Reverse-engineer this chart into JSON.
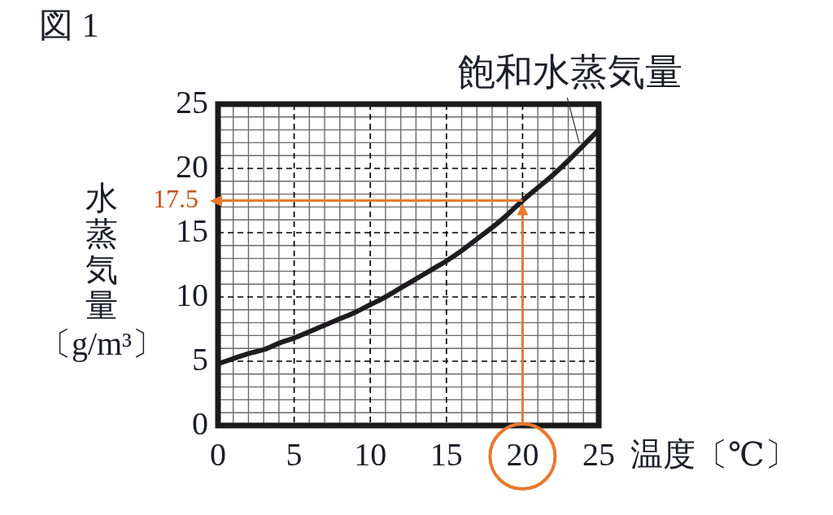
{
  "chart_data": {
    "type": "line",
    "title": "図 1",
    "xlabel": "温度〔℃〕",
    "ylabel": "水蒸気量〔g/m³〕",
    "x": [
      0,
      1,
      2,
      3,
      4,
      5,
      6,
      7,
      8,
      9,
      10,
      11,
      12,
      13,
      14,
      15,
      16,
      17,
      18,
      19,
      20,
      21,
      22,
      23,
      24,
      25
    ],
    "series": [
      {
        "name": "飽和水蒸気量",
        "color": "#1e1c1f",
        "values": [
          4.8,
          5.2,
          5.6,
          5.9,
          6.4,
          6.8,
          7.3,
          7.8,
          8.3,
          8.8,
          9.4,
          10.0,
          10.7,
          11.4,
          12.1,
          12.8,
          13.6,
          14.5,
          15.4,
          16.4,
          17.5,
          18.5,
          19.5,
          20.6,
          21.8,
          23.0
        ]
      }
    ],
    "xlim": [
      0,
      25
    ],
    "ylim": [
      0,
      25
    ],
    "xticks": [
      0,
      {
        "value": 1,
        "label": null
      },
      {
        "value": 2,
        "label": null
      },
      {
        "value": 3,
        "label": null
      },
      {
        "value": 4,
        "label": null
      },
      5,
      {
        "value": 6,
        "label": null
      },
      {
        "value": 7,
        "label": null
      },
      {
        "value": 8,
        "label": null
      },
      {
        "value": 9,
        "label": null
      },
      10,
      {
        "value": 11,
        "label": null
      },
      {
        "value": 12,
        "label": null
      },
      {
        "value": 13,
        "label": null
      },
      {
        "value": 14,
        "label": null
      },
      15,
      {
        "value": 16,
        "label": null
      },
      {
        "value": 17,
        "label": null
      },
      {
        "value": 18,
        "label": null
      },
      {
        "value": 19,
        "label": null
      },
      20,
      {
        "value": 21,
        "label": null
      },
      {
        "value": 22,
        "label": null
      },
      {
        "value": 23,
        "label": null
      },
      {
        "value": 24,
        "label": null
      },
      25
    ],
    "yticks": [
      0,
      {
        "value": 1,
        "label": null
      },
      {
        "value": 2,
        "label": null
      },
      {
        "value": 3,
        "label": null
      },
      {
        "value": 4,
        "label": null
      },
      5,
      {
        "value": 6,
        "label": null
      },
      {
        "value": 7,
        "label": null
      },
      {
        "value": 8,
        "label": null
      },
      {
        "value": 9,
        "label": null
      },
      10,
      {
        "value": 11,
        "label": null
      },
      {
        "value": 12,
        "label": null
      },
      {
        "value": 13,
        "label": null
      },
      {
        "value": 14,
        "label": null
      },
      15,
      {
        "value": 16,
        "label": null
      },
      {
        "value": 17,
        "label": null
      },
      {
        "value": 18,
        "label": null
      },
      {
        "value": 19,
        "label": null
      },
      20,
      {
        "value": 21,
        "label": null
      },
      {
        "value": 22,
        "label": null
      },
      {
        "value": 23,
        "label": null
      },
      {
        "value": 24,
        "label": null
      },
      25
    ],
    "grid": true,
    "annotations": [
      {
        "text": "17.5",
        "x": 20,
        "y": 17.5
      }
    ]
  }
}
